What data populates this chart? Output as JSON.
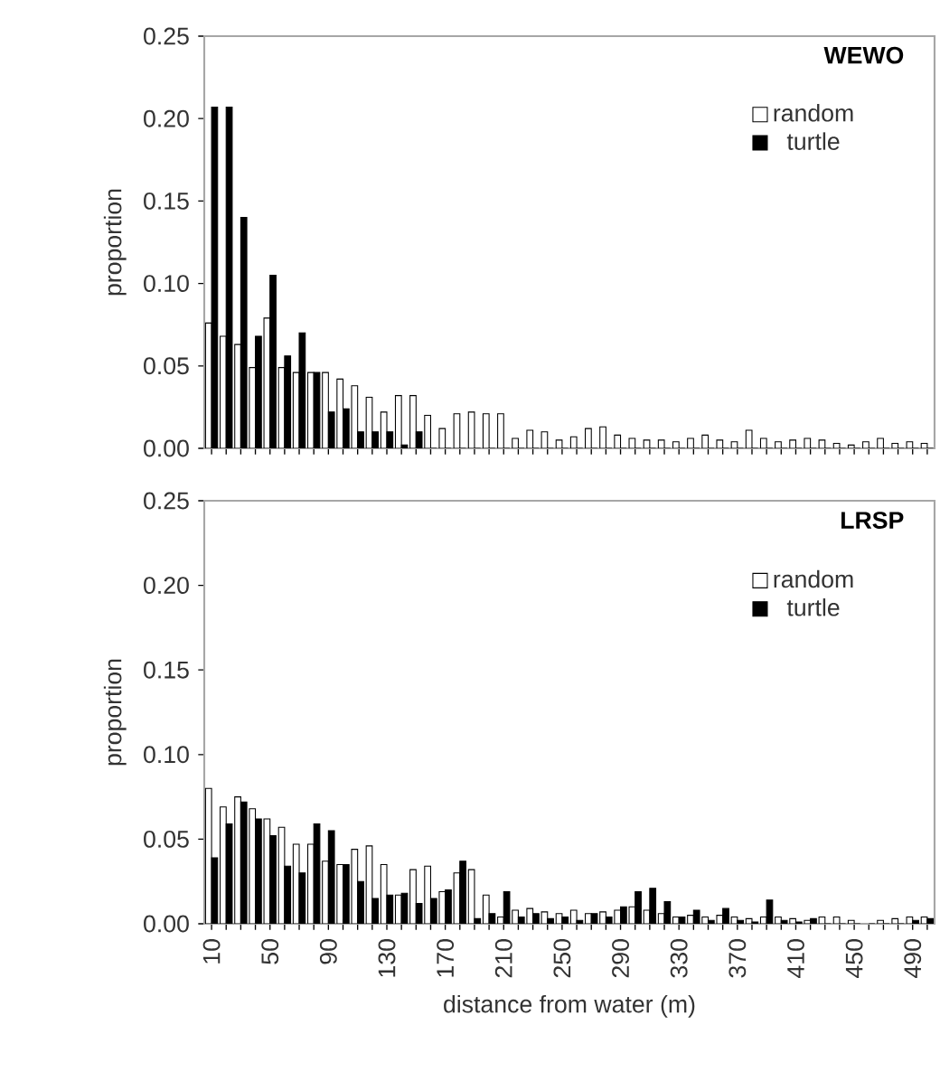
{
  "chart_data": [
    {
      "type": "bar",
      "title": "WEWO",
      "ylabel": "proportion",
      "legend": "top right",
      "tick_labels": "y",
      "categories": [
        "10",
        null,
        null,
        null,
        "50",
        null,
        null,
        null,
        "90",
        null,
        null,
        null,
        "130",
        null,
        null,
        null,
        "170",
        null,
        null,
        null,
        "210",
        null,
        null,
        null,
        "250",
        null,
        null,
        null,
        "290",
        null,
        null,
        null,
        "330",
        null,
        null,
        null,
        "370",
        null,
        null,
        null,
        "410",
        null,
        null,
        null,
        "450",
        null,
        null,
        null,
        "490",
        null
      ],
      "ylim": [
        0,
        0.25
      ],
      "yticks": [
        {
          "value": 0,
          "label": "0.00"
        },
        {
          "value": 0.05,
          "label": "0.05"
        },
        {
          "value": 0.1,
          "label": "0.10"
        },
        {
          "value": 0.15,
          "label": "0.15"
        },
        {
          "value": 0.2,
          "label": "0.20"
        },
        {
          "value": 0.25,
          "label": "0.25"
        }
      ],
      "series": [
        {
          "name": "random",
          "color": "#ffffff",
          "values": [
            0.076,
            0.068,
            0.063,
            0.049,
            0.079,
            0.049,
            0.046,
            0.046,
            0.046,
            0.042,
            0.038,
            0.031,
            0.022,
            0.032,
            0.032,
            0.02,
            0.012,
            0.021,
            0.022,
            0.021,
            0.021,
            0.006,
            0.011,
            0.01,
            0.005,
            0.007,
            0.012,
            0.013,
            0.008,
            0.006,
            0.005,
            0.005,
            0.004,
            0.006,
            0.008,
            0.005,
            0.004,
            0.011,
            0.006,
            0.004,
            0.005,
            0.006,
            0.005,
            0.003,
            0.002,
            0.004,
            0.006,
            0.003,
            0.004,
            0.003
          ]
        },
        {
          "name": "turtle",
          "color": "#000000",
          "values": [
            0.207,
            0.207,
            0.14,
            0.068,
            0.105,
            0.056,
            0.07,
            0.046,
            0.022,
            0.024,
            0.01,
            0.01,
            0.01,
            0.002,
            0.01,
            0,
            0,
            0,
            0,
            0,
            0,
            0,
            0,
            0,
            0,
            0,
            0,
            0,
            0,
            0,
            0,
            0,
            0,
            0,
            0,
            0,
            0,
            0,
            0,
            0,
            0,
            0,
            0,
            0,
            0,
            0,
            0,
            0,
            0,
            0
          ]
        }
      ]
    },
    {
      "type": "bar",
      "title": "LRSP",
      "ylabel": "proportion",
      "xlabel": "distance from water (m)",
      "legend": "top right",
      "categories": [
        "10",
        null,
        null,
        null,
        "50",
        null,
        null,
        null,
        "90",
        null,
        null,
        null,
        "130",
        null,
        null,
        null,
        "170",
        null,
        null,
        null,
        "210",
        null,
        null,
        null,
        "250",
        null,
        null,
        null,
        "290",
        null,
        null,
        null,
        "330",
        null,
        null,
        null,
        "370",
        null,
        null,
        null,
        "410",
        null,
        null,
        null,
        "450",
        null,
        null,
        null,
        "490",
        null
      ],
      "ylim": [
        0,
        0.25
      ],
      "yticks": [
        {
          "value": 0,
          "label": "0.00"
        },
        {
          "value": 0.05,
          "label": "0.05"
        },
        {
          "value": 0.1,
          "label": "0.10"
        },
        {
          "value": 0.15,
          "label": "0.15"
        },
        {
          "value": 0.2,
          "label": "0.20"
        },
        {
          "value": 0.25,
          "label": "0.25"
        }
      ],
      "series": [
        {
          "name": "random",
          "color": "#ffffff",
          "values": [
            0.08,
            0.069,
            0.075,
            0.068,
            0.062,
            0.057,
            0.047,
            0.047,
            0.037,
            0.035,
            0.044,
            0.046,
            0.035,
            0.017,
            0.032,
            0.034,
            0.019,
            0.03,
            0.032,
            0.017,
            0.004,
            0.008,
            0.009,
            0.007,
            0.006,
            0.008,
            0.006,
            0.007,
            0.008,
            0.01,
            0.008,
            0.006,
            0.004,
            0.005,
            0.004,
            0.005,
            0.004,
            0.003,
            0.004,
            0.004,
            0.003,
            0.002,
            0.004,
            0.004,
            0.002,
            null,
            0.002,
            0.003,
            0.004,
            0.004
          ]
        },
        {
          "name": "turtle",
          "color": "#000000",
          "values": [
            0.039,
            0.059,
            0.072,
            0.062,
            0.052,
            0.034,
            0.03,
            0.059,
            0.055,
            0.035,
            0.025,
            0.015,
            0.017,
            0.018,
            0.012,
            0.015,
            0.02,
            0.037,
            0.003,
            0.006,
            0.019,
            0.004,
            0.006,
            0.003,
            0.004,
            0.002,
            0.006,
            0.004,
            0.01,
            0.019,
            0.021,
            0.013,
            0.004,
            0.008,
            0.002,
            0.009,
            0.002,
            0.001,
            0.014,
            0.002,
            0.001,
            0.003,
            0,
            0,
            0,
            0,
            0,
            0,
            0.002,
            0.003
          ]
        }
      ]
    }
  ]
}
